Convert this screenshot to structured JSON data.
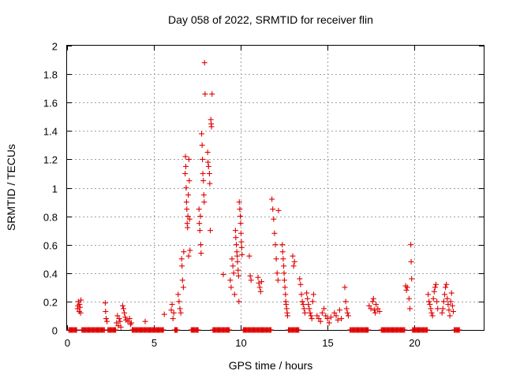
{
  "chart_data": {
    "type": "scatter",
    "title": "Day 058 of 2022, SRMTID for receiver flin",
    "xlabel": "GPS time / hours",
    "ylabel": "SRMTID / TECUs",
    "xlim": [
      0,
      24
    ],
    "ylim": [
      0,
      2
    ],
    "xticks": [
      0,
      5,
      10,
      15,
      20
    ],
    "xtick_labels": [
      "0",
      "5",
      "10",
      "15",
      "20"
    ],
    "yticks": [
      0,
      0.2,
      0.4,
      0.6,
      0.8,
      1,
      1.2,
      1.4,
      1.6,
      1.8,
      2
    ],
    "ytick_labels": [
      "0",
      "0.2",
      "0.4",
      "0.6",
      "0.8",
      "1",
      "1.2",
      "1.4",
      "1.6",
      "1.8",
      "2"
    ],
    "grid": true,
    "marker": "+",
    "color": "#e00000",
    "series": [
      {
        "name": "SRMTID",
        "points": [
          [
            0.6,
            0.15
          ],
          [
            0.65,
            0.2
          ],
          [
            0.7,
            0.13
          ],
          [
            0.72,
            0.18
          ],
          [
            0.75,
            0.16
          ],
          [
            0.78,
            0.12
          ],
          [
            0.8,
            0.21
          ],
          [
            0.62,
            0.17
          ],
          [
            2.2,
            0.19
          ],
          [
            2.22,
            0.13
          ],
          [
            2.25,
            0.08
          ],
          [
            2.3,
            0.06
          ],
          [
            2.85,
            0.05
          ],
          [
            2.9,
            0.1
          ],
          [
            2.95,
            0.03
          ],
          [
            3.0,
            0.08
          ],
          [
            3.05,
            0.06
          ],
          [
            3.1,
            0.02
          ],
          [
            3.2,
            0.17
          ],
          [
            3.25,
            0.15
          ],
          [
            3.3,
            0.12
          ],
          [
            3.35,
            0.09
          ],
          [
            3.4,
            0.07
          ],
          [
            3.5,
            0.06
          ],
          [
            3.6,
            0.08
          ],
          [
            3.65,
            0.04
          ],
          [
            3.7,
            0.05
          ],
          [
            4.5,
            0.06
          ],
          [
            5.6,
            0.11
          ],
          [
            6.0,
            0.14
          ],
          [
            6.05,
            0.18
          ],
          [
            6.1,
            0.08
          ],
          [
            6.15,
            0.12
          ],
          [
            6.4,
            0.25
          ],
          [
            6.45,
            0.2
          ],
          [
            6.5,
            0.15
          ],
          [
            6.55,
            0.12
          ],
          [
            6.6,
            0.5
          ],
          [
            6.62,
            0.45
          ],
          [
            6.65,
            0.35
          ],
          [
            6.7,
            0.3
          ],
          [
            6.72,
            0.55
          ],
          [
            6.8,
            1.1
          ],
          [
            6.82,
            1.22
          ],
          [
            6.84,
            1.15
          ],
          [
            6.86,
            1.0
          ],
          [
            6.88,
            0.9
          ],
          [
            6.9,
            0.85
          ],
          [
            6.92,
            0.75
          ],
          [
            6.94,
            0.72
          ],
          [
            6.96,
            0.8
          ],
          [
            6.98,
            0.95
          ],
          [
            7.0,
            0.52
          ],
          [
            7.02,
            1.2
          ],
          [
            7.04,
            1.05
          ],
          [
            7.06,
            0.78
          ],
          [
            7.08,
            0.56
          ],
          [
            7.6,
            0.85
          ],
          [
            7.62,
            0.75
          ],
          [
            7.65,
            0.7
          ],
          [
            7.68,
            0.8
          ],
          [
            7.7,
            0.6
          ],
          [
            7.72,
            0.54
          ],
          [
            7.75,
            1.38
          ],
          [
            7.78,
            1.3
          ],
          [
            7.8,
            1.2
          ],
          [
            7.82,
            1.1
          ],
          [
            7.85,
            1.05
          ],
          [
            7.88,
            0.95
          ],
          [
            7.9,
            0.9
          ],
          [
            7.92,
            1.88
          ],
          [
            7.95,
            1.66
          ],
          [
            8.1,
            1.25
          ],
          [
            8.12,
            1.18
          ],
          [
            8.15,
            1.15
          ],
          [
            8.2,
            1.1
          ],
          [
            8.22,
            1.03
          ],
          [
            8.25,
            0.7
          ],
          [
            8.28,
            1.48
          ],
          [
            8.3,
            1.45
          ],
          [
            8.32,
            1.43
          ],
          [
            8.35,
            1.66
          ],
          [
            9.0,
            0.39
          ],
          [
            9.4,
            0.35
          ],
          [
            9.45,
            0.3
          ],
          [
            9.5,
            0.5
          ],
          [
            9.55,
            0.45
          ],
          [
            9.6,
            0.4
          ],
          [
            9.65,
            0.25
          ],
          [
            9.7,
            0.7
          ],
          [
            9.72,
            0.65
          ],
          [
            9.75,
            0.6
          ],
          [
            9.78,
            0.55
          ],
          [
            9.8,
            0.52
          ],
          [
            9.82,
            0.48
          ],
          [
            9.85,
            0.42
          ],
          [
            9.88,
            0.38
          ],
          [
            9.9,
            0.2
          ],
          [
            9.92,
            0.9
          ],
          [
            9.95,
            0.85
          ],
          [
            9.98,
            0.8
          ],
          [
            10.0,
            0.75
          ],
          [
            10.02,
            0.68
          ],
          [
            10.04,
            0.62
          ],
          [
            10.06,
            0.58
          ],
          [
            10.08,
            0.53
          ],
          [
            10.5,
            0.52
          ],
          [
            10.55,
            0.38
          ],
          [
            10.6,
            0.35
          ],
          [
            11.0,
            0.37
          ],
          [
            11.05,
            0.33
          ],
          [
            11.1,
            0.3
          ],
          [
            11.15,
            0.27
          ],
          [
            11.2,
            0.34
          ],
          [
            11.8,
            0.92
          ],
          [
            11.85,
            0.85
          ],
          [
            11.9,
            0.78
          ],
          [
            11.95,
            0.68
          ],
          [
            12.0,
            0.6
          ],
          [
            12.05,
            0.5
          ],
          [
            12.1,
            0.4
          ],
          [
            12.15,
            0.35
          ],
          [
            12.18,
            0.84
          ],
          [
            12.4,
            0.6
          ],
          [
            12.42,
            0.55
          ],
          [
            12.45,
            0.5
          ],
          [
            12.48,
            0.45
          ],
          [
            12.5,
            0.4
          ],
          [
            12.52,
            0.35
          ],
          [
            12.55,
            0.3
          ],
          [
            12.58,
            0.25
          ],
          [
            12.6,
            0.2
          ],
          [
            12.62,
            0.18
          ],
          [
            12.65,
            0.15
          ],
          [
            12.68,
            0.12
          ],
          [
            12.7,
            0.1
          ],
          [
            13.0,
            0.52
          ],
          [
            13.05,
            0.45
          ],
          [
            13.1,
            0.48
          ],
          [
            13.4,
            0.36
          ],
          [
            13.45,
            0.32
          ],
          [
            13.5,
            0.25
          ],
          [
            13.55,
            0.2
          ],
          [
            13.6,
            0.18
          ],
          [
            13.65,
            0.15
          ],
          [
            13.7,
            0.12
          ],
          [
            13.8,
            0.26
          ],
          [
            13.85,
            0.22
          ],
          [
            13.9,
            0.18
          ],
          [
            13.95,
            0.15
          ],
          [
            14.0,
            0.12
          ],
          [
            14.05,
            0.1
          ],
          [
            14.1,
            0.08
          ],
          [
            14.15,
            0.2
          ],
          [
            14.2,
            0.25
          ],
          [
            14.4,
            0.1
          ],
          [
            14.5,
            0.08
          ],
          [
            14.6,
            0.06
          ],
          [
            14.7,
            0.12
          ],
          [
            14.8,
            0.15
          ],
          [
            14.9,
            0.1
          ],
          [
            15.0,
            0.08
          ],
          [
            15.1,
            0.05
          ],
          [
            15.2,
            0.09
          ],
          [
            15.4,
            0.12
          ],
          [
            15.5,
            0.1
          ],
          [
            15.6,
            0.07
          ],
          [
            15.7,
            0.14
          ],
          [
            15.8,
            0.08
          ],
          [
            16.0,
            0.3
          ],
          [
            16.05,
            0.2
          ],
          [
            16.1,
            0.15
          ],
          [
            16.15,
            0.12
          ],
          [
            16.2,
            0.1
          ],
          [
            17.4,
            0.17
          ],
          [
            17.5,
            0.15
          ],
          [
            17.6,
            0.2
          ],
          [
            17.65,
            0.22
          ],
          [
            17.7,
            0.14
          ],
          [
            17.75,
            0.12
          ],
          [
            17.8,
            0.18
          ],
          [
            17.9,
            0.15
          ],
          [
            18.0,
            0.13
          ],
          [
            19.5,
            0.31
          ],
          [
            19.55,
            0.28
          ],
          [
            19.6,
            0.3
          ],
          [
            19.7,
            0.22
          ],
          [
            19.75,
            0.15
          ],
          [
            19.8,
            0.6
          ],
          [
            19.82,
            0.48
          ],
          [
            19.85,
            0.36
          ],
          [
            20.8,
            0.25
          ],
          [
            20.85,
            0.2
          ],
          [
            20.9,
            0.18
          ],
          [
            20.95,
            0.15
          ],
          [
            21.0,
            0.12
          ],
          [
            21.05,
            0.1
          ],
          [
            21.1,
            0.22
          ],
          [
            21.15,
            0.27
          ],
          [
            21.2,
            0.3
          ],
          [
            21.25,
            0.32
          ],
          [
            21.3,
            0.2
          ],
          [
            21.35,
            0.15
          ],
          [
            21.6,
            0.12
          ],
          [
            21.65,
            0.15
          ],
          [
            21.7,
            0.2
          ],
          [
            21.75,
            0.25
          ],
          [
            21.8,
            0.3
          ],
          [
            21.85,
            0.32
          ],
          [
            21.9,
            0.22
          ],
          [
            21.95,
            0.18
          ],
          [
            22.0,
            0.14
          ],
          [
            22.05,
            0.1
          ],
          [
            22.1,
            0.2
          ],
          [
            22.15,
            0.26
          ],
          [
            22.2,
            0.17
          ],
          [
            22.25,
            0.13
          ]
        ],
        "zero_runs": [
          [
            0.1,
            0.55
          ],
          [
            0.85,
            2.15
          ],
          [
            2.35,
            2.8
          ],
          [
            3.75,
            5.55
          ],
          [
            6.2,
            6.35
          ],
          [
            7.15,
            7.55
          ],
          [
            8.4,
            9.35
          ],
          [
            10.15,
            11.75
          ],
          [
            12.75,
            13.35
          ],
          [
            16.3,
            17.35
          ],
          [
            18.1,
            19.45
          ],
          [
            19.9,
            20.75
          ],
          [
            22.3,
            22.6
          ]
        ]
      }
    ]
  }
}
